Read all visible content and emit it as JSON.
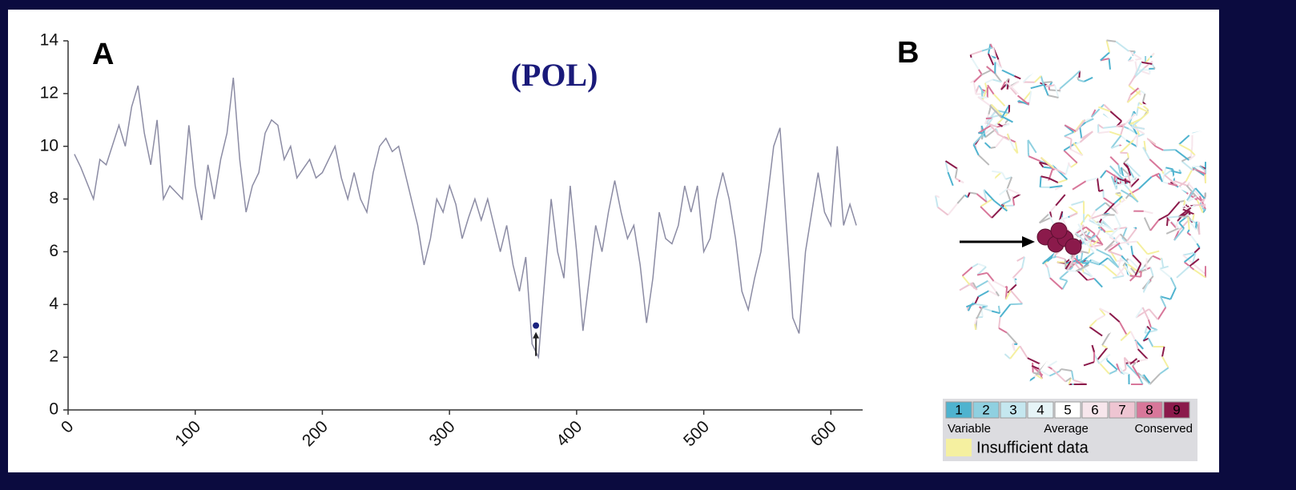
{
  "chart_data": {
    "type": "line",
    "title": "(POL)",
    "panel_label": "A",
    "color": "#8c8ca4",
    "x": [
      5,
      10,
      20,
      25,
      30,
      40,
      45,
      50,
      55,
      60,
      65,
      70,
      75,
      80,
      90,
      95,
      100,
      105,
      110,
      115,
      120,
      125,
      130,
      135,
      140,
      145,
      150,
      155,
      160,
      165,
      170,
      175,
      180,
      190,
      195,
      200,
      210,
      215,
      220,
      225,
      230,
      235,
      240,
      245,
      250,
      255,
      260,
      265,
      270,
      275,
      280,
      285,
      290,
      295,
      300,
      305,
      310,
      315,
      320,
      325,
      330,
      335,
      340,
      345,
      350,
      355,
      360,
      365,
      370,
      375,
      380,
      385,
      390,
      395,
      400,
      405,
      410,
      415,
      420,
      425,
      430,
      435,
      440,
      445,
      450,
      455,
      460,
      465,
      470,
      475,
      480,
      485,
      490,
      495,
      500,
      505,
      510,
      515,
      520,
      525,
      530,
      535,
      540,
      545,
      550,
      555,
      560,
      565,
      570,
      575,
      580,
      585,
      590,
      595,
      600,
      605,
      610,
      615,
      620
    ],
    "values": [
      9.7,
      9.2,
      8.0,
      9.5,
      9.3,
      10.8,
      10.0,
      11.5,
      12.3,
      10.5,
      9.3,
      11.0,
      8.0,
      8.5,
      8.0,
      10.8,
      8.5,
      7.2,
      9.3,
      8.0,
      9.5,
      10.5,
      12.6,
      9.5,
      7.5,
      8.5,
      9.0,
      10.5,
      11.0,
      10.8,
      9.5,
      10.0,
      8.8,
      9.5,
      8.8,
      9.0,
      10.0,
      8.8,
      8.0,
      9.0,
      8.0,
      7.5,
      9.0,
      10.0,
      10.3,
      9.8,
      10.0,
      9.0,
      8.0,
      7.0,
      5.5,
      6.5,
      8.0,
      7.5,
      8.5,
      7.8,
      6.5,
      7.3,
      8.0,
      7.2,
      8.0,
      7.0,
      6.0,
      7.0,
      5.5,
      4.5,
      5.8,
      2.5,
      2.0,
      5.0,
      8.0,
      6.0,
      5.0,
      8.5,
      6.0,
      3.0,
      5.0,
      7.0,
      6.0,
      7.5,
      8.7,
      7.5,
      6.5,
      7.0,
      5.5,
      3.3,
      5.0,
      7.5,
      6.5,
      6.3,
      7.0,
      8.5,
      7.5,
      8.5,
      6.0,
      6.5,
      8.0,
      9.0,
      8.0,
      6.5,
      4.5,
      3.8,
      5.0,
      6.0,
      8.0,
      10.0,
      10.7,
      7.0,
      3.5,
      2.9,
      6.0,
      7.5,
      9.0,
      7.5,
      7.0,
      10.0,
      7.0,
      7.8,
      7.0
    ],
    "highlight": {
      "x": 368,
      "y": 3.2,
      "color": "#1a237e"
    },
    "xlim": [
      0,
      625
    ],
    "xticks": [
      0,
      100,
      200,
      300,
      400,
      500,
      600
    ],
    "ylim": [
      0,
      14
    ],
    "yticks": [
      0,
      2,
      4,
      6,
      8,
      10,
      12,
      14
    ]
  },
  "panel_b": {
    "label": "B",
    "scale": [
      {
        "label": "1",
        "color": "#4fb3cf"
      },
      {
        "label": "2",
        "color": "#8fd0e0"
      },
      {
        "label": "3",
        "color": "#c5e7ef"
      },
      {
        "label": "4",
        "color": "#e6f4f7"
      },
      {
        "label": "5",
        "color": "#ffffff"
      },
      {
        "label": "6",
        "color": "#f7e6ec"
      },
      {
        "label": "7",
        "color": "#eec5d2"
      },
      {
        "label": "8",
        "color": "#d8779a"
      },
      {
        "label": "9",
        "color": "#8b1a4b"
      }
    ],
    "scale_captions": [
      "Variable",
      "Average",
      "Conserved"
    ],
    "insufficient": {
      "label": "Insufficient data",
      "color": "#f5f0a0"
    }
  }
}
